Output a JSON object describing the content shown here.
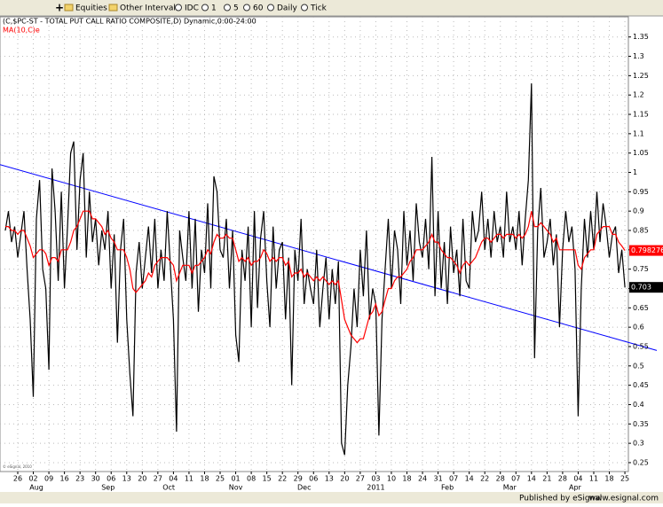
{
  "toolbar": {
    "items": [
      "Equities",
      "Other Intervals",
      "IDC",
      "1",
      "5",
      "60",
      "Daily",
      "Tick"
    ]
  },
  "chart_data": {
    "type": "line",
    "title": "(C,$PC-ST - TOTAL PUT CALL RATIO COMPOSITE,D) Dynamic,0:00-24:00",
    "x_tick_labels": [
      "26",
      "02",
      "09",
      "16",
      "23",
      "30",
      "06",
      "13",
      "20",
      "27",
      "04",
      "11",
      "18",
      "25",
      "01",
      "08",
      "15",
      "22",
      "29",
      "06",
      "13",
      "20",
      "27",
      "03",
      "10",
      "18",
      "24",
      "31",
      "07",
      "14",
      "22",
      "28",
      "07",
      "14",
      "21",
      "28",
      "04",
      "11",
      "18",
      "25"
    ],
    "month_labels": [
      "Aug",
      "Sep",
      "Oct",
      "Nov",
      "Dec",
      "2011",
      "Feb",
      "Mar",
      "Apr"
    ],
    "ylim": [
      0.227,
      1.402
    ],
    "yticks": [
      0.25,
      0.3,
      0.35,
      0.4,
      0.45,
      0.5,
      0.55,
      0.6,
      0.65,
      0.7,
      0.75,
      0.8,
      0.85,
      0.9,
      0.95,
      1,
      1.05,
      1.1,
      1.15,
      1.2,
      1.25,
      1.3,
      1.35
    ],
    "grid": true,
    "series": [
      {
        "name": "(C,$PC-ST - TOTAL PUT CALL RATIO COMPOSITE,D)",
        "color": "#000000",
        "last_label": "0.703",
        "values": [
          0.85,
          0.9,
          0.82,
          0.86,
          0.78,
          0.84,
          0.9,
          0.75,
          0.62,
          0.42,
          0.88,
          0.98,
          0.75,
          0.7,
          0.49,
          1.01,
          0.9,
          0.72,
          0.95,
          0.7,
          0.86,
          1.05,
          1.08,
          0.8,
          0.98,
          1.05,
          0.78,
          0.95,
          0.82,
          0.88,
          0.76,
          0.85,
          0.8,
          0.9,
          0.7,
          0.84,
          0.56,
          0.8,
          0.88,
          0.62,
          0.48,
          0.37,
          0.74,
          0.82,
          0.7,
          0.78,
          0.86,
          0.74,
          0.88,
          0.7,
          0.8,
          0.72,
          0.9,
          0.76,
          0.62,
          0.33,
          0.85,
          0.78,
          0.72,
          0.9,
          0.7,
          0.88,
          0.64,
          0.8,
          0.74,
          0.92,
          0.7,
          0.99,
          0.95,
          0.8,
          0.78,
          0.88,
          0.7,
          0.85,
          0.58,
          0.51,
          0.8,
          0.72,
          0.86,
          0.6,
          0.9,
          0.65,
          0.83,
          0.9,
          0.72,
          0.6,
          0.86,
          0.7,
          0.8,
          0.82,
          0.62,
          0.78,
          0.45,
          0.8,
          0.72,
          0.88,
          0.66,
          0.75,
          0.7,
          0.66,
          0.8,
          0.6,
          0.7,
          0.78,
          0.62,
          0.75,
          0.66,
          0.77,
          0.3,
          0.27,
          0.45,
          0.55,
          0.7,
          0.6,
          0.8,
          0.68,
          0.85,
          0.62,
          0.7,
          0.66,
          0.32,
          0.62,
          0.75,
          0.88,
          0.7,
          0.85,
          0.8,
          0.66,
          0.9,
          0.76,
          0.85,
          0.72,
          0.92,
          0.82,
          0.78,
          0.88,
          0.75,
          1.04,
          0.68,
          0.9,
          0.7,
          0.82,
          0.66,
          0.86,
          0.74,
          0.8,
          0.68,
          0.88,
          0.72,
          0.7,
          0.9,
          0.82,
          0.85,
          0.95,
          0.8,
          0.88,
          0.78,
          0.9,
          0.82,
          0.86,
          0.78,
          0.95,
          0.82,
          0.86,
          0.8,
          0.9,
          0.76,
          0.88,
          0.98,
          1.23,
          0.52,
          0.85,
          0.96,
          0.78,
          0.82,
          0.88,
          0.76,
          0.84,
          0.6,
          0.8,
          0.9,
          0.82,
          0.86,
          0.75,
          0.37,
          0.7,
          0.88,
          0.78,
          0.9,
          0.8,
          0.95,
          0.82,
          0.92,
          0.86,
          0.78,
          0.84,
          0.86,
          0.74,
          0.8,
          0.703
        ]
      },
      {
        "name": "MA(10,C)e",
        "color": "#ff0000",
        "last_label": "0.798276",
        "values": [
          0.86,
          0.86,
          0.85,
          0.85,
          0.84,
          0.85,
          0.85,
          0.83,
          0.81,
          0.78,
          0.79,
          0.8,
          0.8,
          0.79,
          0.76,
          0.78,
          0.78,
          0.77,
          0.8,
          0.8,
          0.8,
          0.82,
          0.85,
          0.86,
          0.88,
          0.9,
          0.9,
          0.9,
          0.88,
          0.88,
          0.87,
          0.86,
          0.84,
          0.85,
          0.83,
          0.82,
          0.8,
          0.8,
          0.8,
          0.78,
          0.75,
          0.7,
          0.69,
          0.7,
          0.71,
          0.72,
          0.74,
          0.73,
          0.76,
          0.77,
          0.78,
          0.78,
          0.78,
          0.77,
          0.76,
          0.72,
          0.74,
          0.76,
          0.76,
          0.76,
          0.74,
          0.76,
          0.76,
          0.77,
          0.78,
          0.8,
          0.79,
          0.82,
          0.84,
          0.83,
          0.83,
          0.84,
          0.83,
          0.83,
          0.8,
          0.77,
          0.78,
          0.77,
          0.78,
          0.76,
          0.77,
          0.77,
          0.78,
          0.8,
          0.79,
          0.77,
          0.78,
          0.77,
          0.78,
          0.78,
          0.76,
          0.77,
          0.73,
          0.74,
          0.74,
          0.75,
          0.73,
          0.74,
          0.73,
          0.72,
          0.73,
          0.72,
          0.73,
          0.72,
          0.71,
          0.72,
          0.71,
          0.72,
          0.67,
          0.62,
          0.6,
          0.58,
          0.57,
          0.56,
          0.57,
          0.57,
          0.6,
          0.63,
          0.64,
          0.66,
          0.63,
          0.64,
          0.67,
          0.7,
          0.7,
          0.72,
          0.73,
          0.73,
          0.74,
          0.75,
          0.77,
          0.78,
          0.8,
          0.8,
          0.8,
          0.81,
          0.82,
          0.84,
          0.82,
          0.82,
          0.8,
          0.79,
          0.78,
          0.78,
          0.77,
          0.76,
          0.74,
          0.76,
          0.77,
          0.76,
          0.77,
          0.78,
          0.8,
          0.82,
          0.83,
          0.83,
          0.82,
          0.83,
          0.84,
          0.84,
          0.83,
          0.84,
          0.84,
          0.84,
          0.83,
          0.84,
          0.83,
          0.84,
          0.86,
          0.9,
          0.86,
          0.86,
          0.87,
          0.86,
          0.85,
          0.84,
          0.82,
          0.83,
          0.8,
          0.8,
          0.8,
          0.8,
          0.8,
          0.8,
          0.76,
          0.75,
          0.78,
          0.79,
          0.8,
          0.8,
          0.84,
          0.85,
          0.86,
          0.86,
          0.86,
          0.84,
          0.84,
          0.82,
          0.81,
          0.798276
        ]
      }
    ],
    "trend_line": {
      "color": "#0000ff",
      "start": 1.02,
      "end": 0.54
    },
    "copyright": "© eSignal, 2010"
  },
  "footer": {
    "publisher": "Published by eSignal",
    "url": "www.esignal.com"
  }
}
